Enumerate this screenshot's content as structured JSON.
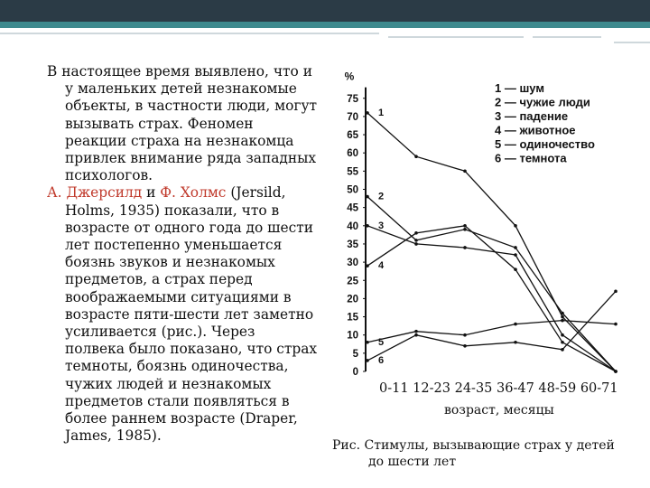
{
  "text": {
    "p1": "В настоящее время выявлено, что и у маленьких детей незнакомые объекты, в частности люди, могут вызывать страх. Феномен реакции страха на незнакомца привлек внимание ряда западных психологов.",
    "author1": "А. Джерсилд",
    "and": "и",
    "author2": "Ф. Холмс",
    "p2": "(Jersild, Holms, 1935) показали, что в возрасте от одного года до шести лет постепенно уменьшается боязнь звуков и незнакомых предметов, а страх перед воображаемыми ситуациями в возрасте пяти-шести лет заметно усиливается (рис.). Через полвека было показано, что страх темноты, боязнь одиночества, чужих людей и незнакомых предметов стали появляться в более раннем возрасте (Draper, James, 1985)."
  },
  "caption": {
    "line1": "Рис. Стимулы, вызывающие страх у детей",
    "line2": "до шести лет"
  },
  "chart_data": {
    "type": "line",
    "ylabel": "%",
    "xlabel": "возраст, месяцы",
    "categories": [
      "0-11",
      "12-23",
      "24-35",
      "36-47",
      "48-59",
      "60-71"
    ],
    "x_ticks_label": "0-11 12-23 24-35 36-47 48-59 60-71",
    "y_ticks": [
      0,
      5,
      10,
      15,
      20,
      25,
      30,
      35,
      40,
      45,
      50,
      55,
      60,
      65,
      70,
      75
    ],
    "ylim": [
      0,
      80
    ],
    "series": [
      {
        "name": "шум",
        "number": "1",
        "legend": "1 — шум",
        "values": [
          71,
          59,
          55,
          40,
          15,
          0
        ]
      },
      {
        "name": "чужие люди",
        "number": "2",
        "legend": "2 — чужие люди",
        "values": [
          48,
          36,
          39,
          34,
          16,
          0
        ]
      },
      {
        "name": "падение",
        "number": "3",
        "legend": "3 — падение",
        "values": [
          40,
          35,
          34,
          32,
          10,
          0
        ]
      },
      {
        "name": "животное",
        "number": "4",
        "legend": "4 — животное",
        "values": [
          29,
          38,
          40,
          28,
          8,
          0
        ]
      },
      {
        "name": "одиночество",
        "number": "5",
        "legend": "5 — одиночество",
        "values": [
          8,
          11,
          10,
          13,
          14,
          13
        ]
      },
      {
        "name": "темнота",
        "number": "6",
        "legend": "6 — темнота",
        "values": [
          3,
          10,
          7,
          8,
          6,
          22
        ]
      }
    ]
  }
}
